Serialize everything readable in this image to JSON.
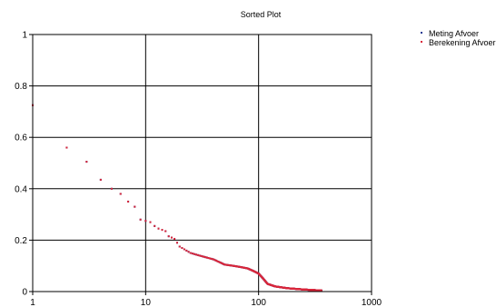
{
  "chart_data": {
    "type": "scatter",
    "title": "Sorted Plot",
    "xlabel": "",
    "ylabel": "",
    "xscale": "log",
    "xlim": [
      1,
      1000
    ],
    "ylim": [
      0,
      1
    ],
    "xticks": [
      "1",
      "10",
      "100",
      "1000"
    ],
    "yticks": [
      "0",
      "0.2",
      "0.4",
      "0.6",
      "0.8",
      "1"
    ],
    "grid": true,
    "legend_position": "top-right",
    "series": [
      {
        "name": "Meting Afvoer",
        "color": "#1f3a93",
        "x": [
          1,
          2,
          3,
          4,
          5,
          6,
          7,
          8,
          9,
          10,
          11,
          12,
          13,
          14,
          15,
          16,
          17,
          18,
          19,
          20
        ],
        "y": [
          0.725,
          0.56,
          0.505,
          0.435,
          0.4,
          0.38,
          0.35,
          0.33,
          0.28,
          0.275,
          0.27,
          0.255,
          0.245,
          0.24,
          0.235,
          0.215,
          0.21,
          0.205,
          0.19,
          0.175
        ]
      },
      {
        "name": "Berekening Afvoer",
        "color": "#d9263a",
        "x": [
          1,
          2,
          3,
          4,
          5,
          6,
          7,
          8,
          9,
          10,
          11,
          12,
          13,
          14,
          15,
          16,
          17,
          18,
          19,
          20
        ],
        "y": [
          0.725,
          0.56,
          0.505,
          0.435,
          0.4,
          0.38,
          0.35,
          0.33,
          0.28,
          0.275,
          0.27,
          0.255,
          0.245,
          0.24,
          0.235,
          0.215,
          0.21,
          0.205,
          0.19,
          0.175
        ]
      }
    ],
    "tail_profile": [
      [
        20,
        0.175
      ],
      [
        25,
        0.15
      ],
      [
        30,
        0.14
      ],
      [
        40,
        0.125
      ],
      [
        50,
        0.105
      ],
      [
        60,
        0.1
      ],
      [
        70,
        0.095
      ],
      [
        80,
        0.09
      ],
      [
        90,
        0.08
      ],
      [
        100,
        0.07
      ],
      [
        110,
        0.05
      ],
      [
        120,
        0.03
      ],
      [
        140,
        0.02
      ],
      [
        180,
        0.013
      ],
      [
        250,
        0.008
      ],
      [
        360,
        0.004
      ]
    ]
  }
}
